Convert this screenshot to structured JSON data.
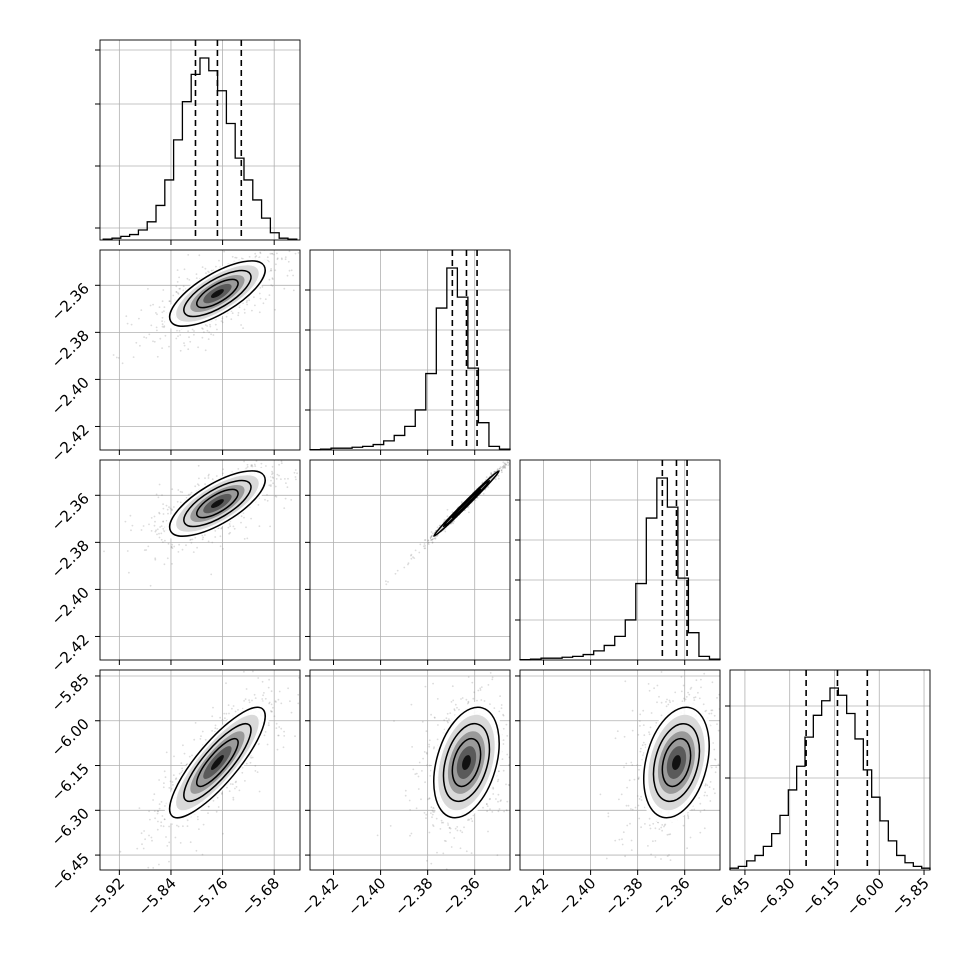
{
  "chart_data": {
    "type": "corner",
    "description_of_params": [
      {
        "axis_range": [
          -5.95,
          -5.64
        ],
        "ticks": [
          -5.92,
          -5.84,
          -5.76,
          -5.68
        ],
        "tick_labels": [
          "−5.92",
          "−5.84",
          "−5.76",
          "−5.68"
        ]
      },
      {
        "axis_range": [
          -2.43,
          -2.345
        ],
        "ticks": [
          -2.36,
          -2.38,
          -2.4,
          -2.42
        ],
        "tick_labels": [
          "−2.36",
          "−2.38",
          "−2.40",
          "−2.42"
        ]
      },
      {
        "axis_range": [
          -2.43,
          -2.345
        ],
        "ticks": [
          -2.36,
          -2.38,
          -2.4,
          -2.42
        ],
        "tick_labels": [
          "−2.36",
          "−2.38",
          "−2.40",
          "−2.42"
        ]
      },
      {
        "axis_range": [
          -6.5,
          -5.83
        ],
        "ticks": [
          -5.85,
          -6.0,
          -6.15,
          -6.3,
          -6.45
        ],
        "tick_labels": [
          "−5.85",
          "−6.00",
          "−6.15",
          "−6.30",
          "−6.45"
        ]
      }
    ],
    "x_tick_labels": [
      [
        "−5.92",
        "−5.84",
        "−5.76",
        "−5.68"
      ],
      [
        "−2.42",
        "−2.40",
        "−2.38",
        "−2.36"
      ],
      [
        "−2.42",
        "−2.40",
        "−2.38",
        "−2.36"
      ],
      [
        "−6.45",
        "−6.30",
        "−6.15",
        "−6.00",
        "−5.85"
      ]
    ],
    "histograms": [
      {
        "param": 0,
        "quantiles": [
          -5.802,
          -5.768,
          -5.731
        ],
        "bins_from": -5.945,
        "bins_to": -5.645,
        "counts": [
          0.005,
          0.01,
          0.02,
          0.03,
          0.055,
          0.1,
          0.19,
          0.33,
          0.55,
          0.76,
          0.91,
          1.0,
          0.93,
          0.82,
          0.64,
          0.45,
          0.33,
          0.22,
          0.12,
          0.04,
          0.01,
          0.005
        ]
      },
      {
        "param": 1,
        "quantiles": [
          -2.3695,
          -2.3635,
          -2.359
        ],
        "bins_from": -2.43,
        "bins_to": -2.345,
        "counts": [
          0.002,
          0.005,
          0.01,
          0.01,
          0.015,
          0.02,
          0.03,
          0.05,
          0.08,
          0.13,
          0.22,
          0.42,
          0.78,
          1.0,
          0.84,
          0.45,
          0.15,
          0.02,
          0.005
        ]
      },
      {
        "param": 2,
        "quantiles": [
          -2.3695,
          -2.3635,
          -2.359
        ],
        "bins_from": -2.43,
        "bins_to": -2.345,
        "counts": [
          0.002,
          0.005,
          0.01,
          0.01,
          0.015,
          0.02,
          0.03,
          0.05,
          0.08,
          0.13,
          0.22,
          0.42,
          0.78,
          1.0,
          0.84,
          0.45,
          0.15,
          0.02,
          0.005
        ]
      },
      {
        "param": 3,
        "quantiles": [
          -6.245,
          -6.14,
          -6.04
        ],
        "bins_from": -6.5,
        "bins_to": -5.83,
        "counts": [
          0.01,
          0.02,
          0.05,
          0.08,
          0.13,
          0.2,
          0.3,
          0.44,
          0.57,
          0.73,
          0.85,
          0.93,
          1.0,
          0.96,
          0.86,
          0.72,
          0.55,
          0.4,
          0.27,
          0.16,
          0.08,
          0.04,
          0.02,
          0.01
        ]
      }
    ],
    "joint_densities": [
      {
        "x_param": 0,
        "y_param": 1,
        "center": [
          -5.768,
          -2.3635
        ],
        "sd": [
          0.04,
          0.0075
        ],
        "corr": 0.72
      },
      {
        "x_param": 0,
        "y_param": 2,
        "center": [
          -5.768,
          -2.3635
        ],
        "sd": [
          0.04,
          0.0075
        ],
        "corr": 0.72
      },
      {
        "x_param": 1,
        "y_param": 2,
        "center": [
          -2.3635,
          -2.3635
        ],
        "sd": [
          0.0075,
          0.0075
        ],
        "corr": 0.995
      },
      {
        "x_param": 0,
        "y_param": 3,
        "center": [
          -5.768,
          -6.14
        ],
        "sd": [
          0.04,
          0.1
        ],
        "corr": 0.84
      },
      {
        "x_param": 1,
        "y_param": 3,
        "center": [
          -2.3635,
          -6.14
        ],
        "sd": [
          0.0075,
          0.1
        ],
        "corr": 0.35
      },
      {
        "x_param": 2,
        "y_param": 3,
        "center": [
          -2.3635,
          -6.14
        ],
        "sd": [
          0.0075,
          0.1
        ],
        "corr": 0.3
      }
    ],
    "contour_levels_sigma": [
      0.5,
      1.0,
      1.5
    ],
    "grid": true,
    "colors": {
      "line": "#000000",
      "grid": "#b0b0b0",
      "points": "#808080",
      "frame": "#000000"
    }
  }
}
